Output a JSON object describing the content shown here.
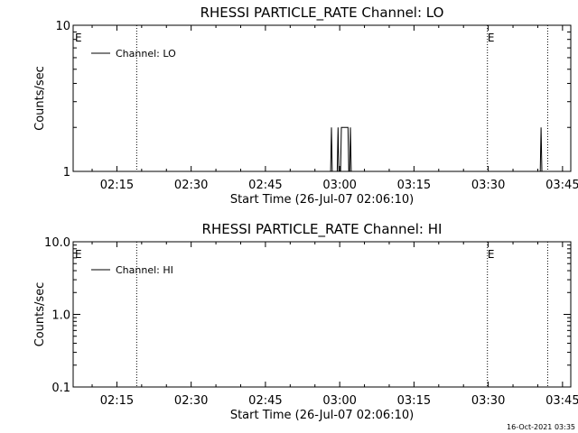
{
  "chart_data": [
    {
      "type": "line",
      "title": "RHESSI PARTICLE_RATE Channel: LO",
      "xlabel": "Start Time (26-Jul-07 02:06:10)",
      "ylabel": "Counts/sec",
      "yscale": "log",
      "ylim": [
        1,
        10
      ],
      "ytick_labels": [
        "1",
        "10"
      ],
      "xlim": [
        "02:06:10",
        "03:46:40"
      ],
      "xtick_labels": [
        "02:15",
        "02:30",
        "02:45",
        "03:00",
        "03:15",
        "03:30",
        "03:45"
      ],
      "legend": {
        "placement": "top-left",
        "entries": [
          "Channel: LO"
        ]
      },
      "event_lines": [
        {
          "time": "02:19:00",
          "label": "E",
          "label_time": "02:06:30"
        },
        {
          "time": "03:29:50",
          "label": "E",
          "label_time": "03:29:50"
        },
        {
          "time": "03:42:00",
          "label": "",
          "label_time": ""
        }
      ],
      "series": [
        {
          "name": "Channel: LO",
          "points": [
            [
              "02:58:10",
              1
            ],
            [
              "02:58:20",
              2
            ],
            [
              "02:58:30",
              1
            ],
            [
              "02:59:30",
              1
            ],
            [
              "02:59:40",
              2
            ],
            [
              "02:59:50",
              1
            ],
            [
              "03:00:10",
              1
            ],
            [
              "03:00:20",
              2
            ],
            [
              "03:01:40",
              2
            ],
            [
              "03:01:50",
              1
            ],
            [
              "03:02:00",
              1
            ],
            [
              "03:02:10",
              2
            ],
            [
              "03:02:20",
              1
            ],
            [
              "03:40:30",
              1
            ],
            [
              "03:40:40",
              2
            ],
            [
              "03:40:50",
              1
            ]
          ]
        }
      ]
    },
    {
      "type": "line",
      "title": "RHESSI PARTICLE_RATE Channel: HI",
      "xlabel": "Start Time (26-Jul-07 02:06:10)",
      "ylabel": "Counts/sec",
      "yscale": "log",
      "ylim": [
        0.1,
        10
      ],
      "ytick_labels": [
        "0.1",
        "1.0",
        "10.0"
      ],
      "xlim": [
        "02:06:10",
        "03:46:40"
      ],
      "xtick_labels": [
        "02:15",
        "02:30",
        "02:45",
        "03:00",
        "03:15",
        "03:30",
        "03:45"
      ],
      "legend": {
        "placement": "top-left",
        "entries": [
          "Channel: HI"
        ]
      },
      "event_lines": [
        {
          "time": "02:19:00",
          "label": "E",
          "label_time": "02:06:30"
        },
        {
          "time": "03:29:50",
          "label": "E",
          "label_time": "03:29:50"
        },
        {
          "time": "03:42:00",
          "label": "",
          "label_time": ""
        }
      ],
      "series": [
        {
          "name": "Channel: HI",
          "points": []
        }
      ]
    }
  ],
  "footer": {
    "timestamp": "16-Oct-2021 03:35"
  }
}
